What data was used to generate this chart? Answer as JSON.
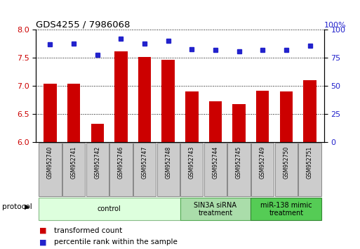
{
  "title": "GDS4255 / 7986068",
  "samples": [
    "GSM952740",
    "GSM952741",
    "GSM952742",
    "GSM952746",
    "GSM952747",
    "GSM952748",
    "GSM952743",
    "GSM952744",
    "GSM952745",
    "GSM952749",
    "GSM952750",
    "GSM952751"
  ],
  "transformed_count": [
    7.04,
    7.04,
    6.32,
    7.62,
    7.52,
    7.47,
    6.9,
    6.73,
    6.68,
    6.91,
    6.9,
    7.1
  ],
  "percentile_rank": [
    87,
    88,
    78,
    92,
    88,
    90,
    83,
    82,
    81,
    82,
    82,
    86
  ],
  "bar_color": "#cc0000",
  "dot_color": "#2222cc",
  "ylim_left": [
    6,
    8
  ],
  "ylim_right": [
    0,
    100
  ],
  "yticks_left": [
    6,
    6.5,
    7,
    7.5,
    8
  ],
  "yticks_right": [
    0,
    25,
    50,
    75,
    100
  ],
  "group_colors": [
    "#ddffdd",
    "#aaddaa",
    "#55cc55"
  ],
  "group_edge_colors": [
    "#88bb88",
    "#55aa55",
    "#338833"
  ],
  "group_ranges": [
    [
      0,
      5
    ],
    [
      6,
      8
    ],
    [
      9,
      11
    ]
  ],
  "group_labels": [
    "control",
    "SIN3A siRNA\ntreatment",
    "miR-138 mimic\ntreatment"
  ],
  "protocol_label": "protocol",
  "legend_bar_label": "transformed count",
  "legend_dot_label": "percentile rank within the sample",
  "bar_color_left": "#cc0000",
  "tick_color_left": "#cc0000",
  "tick_color_right": "#2222cc",
  "sample_box_color": "#cccccc",
  "sample_box_edge": "#888888"
}
